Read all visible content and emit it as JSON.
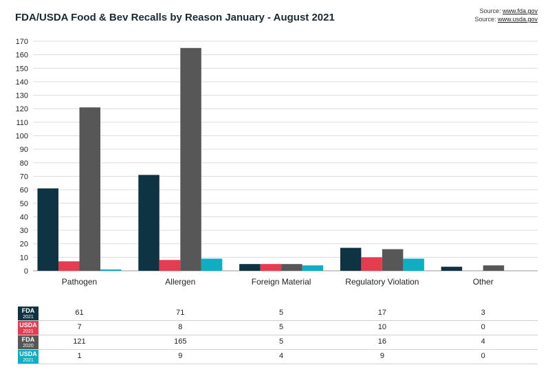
{
  "title": "FDA/USDA Food & Bev Recalls by Reason January - August 2021",
  "sources": [
    {
      "label": "Source: ",
      "link": "www.fda.gov"
    },
    {
      "label": "Source: ",
      "link": "www.usda.gov"
    }
  ],
  "chart_data": {
    "type": "bar",
    "title": "FDA/USDA Food & Bev Recalls by Reason January - August 2021",
    "categories": [
      "Pathogen",
      "Allergen",
      "Foreign Material",
      "Regulatory Violation",
      "Other"
    ],
    "series": [
      {
        "name": "FDA",
        "year": "2021",
        "color": "#0e3443",
        "values": [
          61,
          71,
          5,
          17,
          3
        ]
      },
      {
        "name": "USDA",
        "year": "2021",
        "color": "#e63c50",
        "values": [
          7,
          8,
          5,
          10,
          0
        ]
      },
      {
        "name": "FDA",
        "year": "2020",
        "color": "#575757",
        "values": [
          121,
          165,
          5,
          16,
          4
        ]
      },
      {
        "name": "USDA",
        "year": "2021",
        "color": "#10aec4",
        "values": [
          1,
          9,
          4,
          9,
          0
        ]
      }
    ],
    "yticks": [
      0,
      10,
      20,
      30,
      40,
      50,
      60,
      70,
      80,
      90,
      100,
      110,
      120,
      130,
      140,
      150,
      160,
      170
    ],
    "ylim": [
      0,
      170
    ],
    "grid": true,
    "legend": "data table below chart"
  }
}
